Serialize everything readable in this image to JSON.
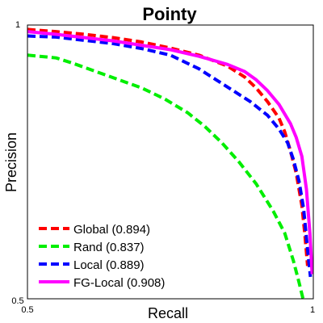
{
  "chart_data": {
    "type": "line",
    "title": "Pointy",
    "xlabel": "Recall",
    "ylabel": "Precision",
    "xlim": [
      0.5,
      1
    ],
    "ylim": [
      0.5,
      1
    ],
    "x_ticks": [
      "0.5",
      "1"
    ],
    "y_ticks": [
      "0.5",
      "1"
    ],
    "grid": false,
    "legend_position": "bottom-left",
    "series": [
      {
        "name": "Global (0.894)",
        "color": "#ff0000",
        "style": "dashed",
        "points": [
          [
            0.5,
            0.992
          ],
          [
            0.55,
            0.988
          ],
          [
            0.6,
            0.983
          ],
          [
            0.65,
            0.977
          ],
          [
            0.7,
            0.969
          ],
          [
            0.75,
            0.958
          ],
          [
            0.8,
            0.945
          ],
          [
            0.85,
            0.925
          ],
          [
            0.88,
            0.905
          ],
          [
            0.9,
            0.885
          ],
          [
            0.92,
            0.86
          ],
          [
            0.94,
            0.83
          ],
          [
            0.95,
            0.805
          ],
          [
            0.96,
            0.77
          ],
          [
            0.97,
            0.73
          ],
          [
            0.98,
            0.67
          ],
          [
            0.985,
            0.62
          ],
          [
            0.99,
            0.56
          ]
        ]
      },
      {
        "name": "Rand (0.837)",
        "color": "#00ee00",
        "style": "dashed",
        "points": [
          [
            0.5,
            0.945
          ],
          [
            0.55,
            0.94
          ],
          [
            0.58,
            0.93
          ],
          [
            0.62,
            0.915
          ],
          [
            0.66,
            0.9
          ],
          [
            0.7,
            0.885
          ],
          [
            0.74,
            0.865
          ],
          [
            0.78,
            0.84
          ],
          [
            0.81,
            0.815
          ],
          [
            0.84,
            0.785
          ],
          [
            0.87,
            0.75
          ],
          [
            0.9,
            0.71
          ],
          [
            0.93,
            0.66
          ],
          [
            0.95,
            0.62
          ],
          [
            0.965,
            0.57
          ],
          [
            0.975,
            0.53
          ],
          [
            0.982,
            0.5
          ]
        ]
      },
      {
        "name": "Local (0.889)",
        "color": "#0000ff",
        "style": "dashed",
        "points": [
          [
            0.5,
            0.98
          ],
          [
            0.55,
            0.978
          ],
          [
            0.6,
            0.972
          ],
          [
            0.65,
            0.966
          ],
          [
            0.7,
            0.957
          ],
          [
            0.75,
            0.945
          ],
          [
            0.8,
            0.92
          ],
          [
            0.83,
            0.9
          ],
          [
            0.86,
            0.88
          ],
          [
            0.89,
            0.86
          ],
          [
            0.92,
            0.835
          ],
          [
            0.94,
            0.81
          ],
          [
            0.955,
            0.785
          ],
          [
            0.965,
            0.755
          ],
          [
            0.975,
            0.715
          ],
          [
            0.983,
            0.665
          ],
          [
            0.99,
            0.59
          ],
          [
            0.995,
            0.54
          ]
        ]
      },
      {
        "name": "FG-Local (0.908)",
        "color": "#ff00ff",
        "style": "solid",
        "points": [
          [
            0.5,
            0.988
          ],
          [
            0.55,
            0.983
          ],
          [
            0.6,
            0.977
          ],
          [
            0.65,
            0.971
          ],
          [
            0.7,
            0.963
          ],
          [
            0.75,
            0.955
          ],
          [
            0.8,
            0.943
          ],
          [
            0.85,
            0.928
          ],
          [
            0.88,
            0.915
          ],
          [
            0.9,
            0.9
          ],
          [
            0.92,
            0.88
          ],
          [
            0.94,
            0.855
          ],
          [
            0.96,
            0.82
          ],
          [
            0.97,
            0.795
          ],
          [
            0.98,
            0.76
          ],
          [
            0.988,
            0.7
          ],
          [
            0.994,
            0.62
          ],
          [
            0.998,
            0.545
          ]
        ]
      }
    ]
  }
}
